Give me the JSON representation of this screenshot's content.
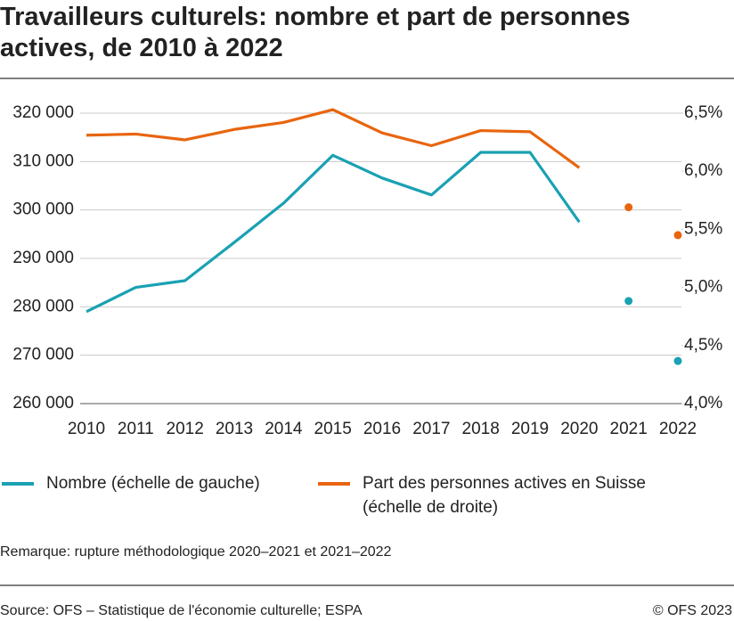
{
  "chart_data": {
    "type": "line",
    "title": "Travailleurs culturels: nombre et part de personnes actives, de 2010 à 2022",
    "x": [
      2010,
      2011,
      2012,
      2013,
      2014,
      2015,
      2016,
      2017,
      2018,
      2019,
      2020,
      2021,
      2022
    ],
    "xlim": [
      2010,
      2022
    ],
    "break_after": [
      10,
      11
    ],
    "series": [
      {
        "name": "Nombre (échelle de gauche)",
        "color": "#1aa1b3",
        "values": [
          279000,
          284000,
          285400,
          293300,
          301400,
          311300,
          306600,
          303100,
          311900,
          311900,
          297500,
          281200,
          268800
        ]
      },
      {
        "name": "Part des personnes actives en Suisse (échelle de droite)",
        "color": "#e8650f",
        "axis": "y2",
        "values": [
          6.31,
          6.32,
          6.27,
          6.36,
          6.42,
          6.53,
          6.33,
          6.22,
          6.35,
          6.34,
          6.03,
          5.69,
          5.45
        ]
      }
    ],
    "ylim": [
      260000,
      320000
    ],
    "yticks": [
      {
        "value": 260000,
        "label": "260 000"
      },
      {
        "value": 270000,
        "label": "270 000"
      },
      {
        "value": 280000,
        "label": "280 000"
      },
      {
        "value": 290000,
        "label": "290 000"
      },
      {
        "value": 300000,
        "label": "300 000"
      },
      {
        "value": 310000,
        "label": "310 000"
      },
      {
        "value": 320000,
        "label": "320 000"
      }
    ],
    "y2lim": [
      4.0,
      6.5
    ],
    "y2ticks": [
      {
        "value": 4.0,
        "label": "4,0%"
      },
      {
        "value": 4.5,
        "label": "4,5%"
      },
      {
        "value": 5.0,
        "label": "5,0%"
      },
      {
        "value": 5.5,
        "label": "5,5%"
      },
      {
        "value": 6.0,
        "label": "6,0%"
      },
      {
        "value": 6.5,
        "label": "6,5%"
      }
    ],
    "grid": true,
    "note": "Remarque: rupture méthodologique 2020–2021 et 2021–2022",
    "source": "Source: OFS – Statistique de l'économie culturelle; ESPA",
    "copyright": "© OFS 2023"
  }
}
